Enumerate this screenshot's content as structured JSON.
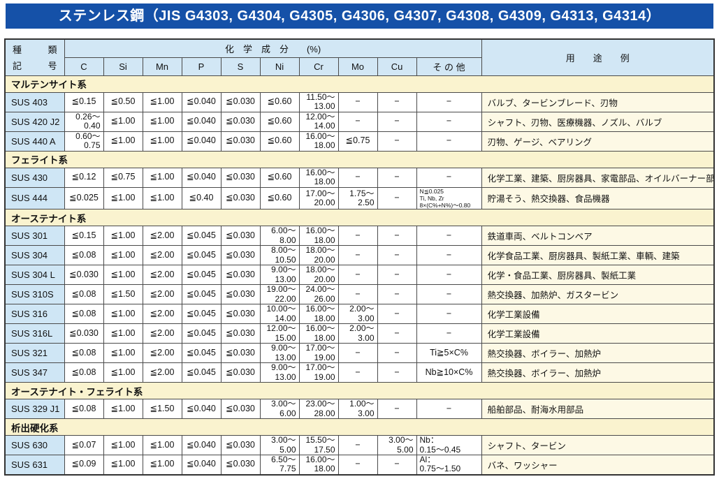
{
  "title": "ステンレス鋼（JIS G4303, G4304, G4305, G4306, G4307, G4308, G4309, G4313, G4314）",
  "colors": {
    "title_bar_bg": "#1551a8",
    "title_text": "#ffffff",
    "header_bg": "#d2e7f5",
    "grade_cell_bg": "#cfe6f5",
    "section_row_bg": "#faf3cf",
    "usage_cell_bg": "#fdf9e5",
    "data_cell_bg": "#ffffff",
    "border": "#4a4a4a"
  },
  "header": {
    "kind_char1": "種",
    "kind_char2": "類",
    "symbol_char1": "記",
    "symbol_char2": "号",
    "chem_label": "化　学　成　分　　(%)",
    "usage_label": "用　　途　　例",
    "columns": [
      "C",
      "Si",
      "Mn",
      "P",
      "S",
      "Ni",
      "Cr",
      "Mo",
      "Cu",
      "そ の 他"
    ]
  },
  "sections": [
    {
      "name": "マルテンサイト系",
      "rows": [
        {
          "grade": "SUS 403",
          "values": [
            "≦0.15",
            "≦0.50",
            "≦1.00",
            "≦0.040",
            "≦0.030",
            "≦0.60",
            {
              "lines": [
                "11.50～",
                "13.00"
              ],
              "align": "right"
            },
            "−",
            "−",
            "−"
          ],
          "usage": "バルブ、タービンブレード、刃物"
        },
        {
          "grade": "SUS 420 J2",
          "values": [
            {
              "lines": [
                "0.26～",
                "0.40"
              ],
              "align": "right"
            },
            "≦1.00",
            "≦1.00",
            "≦0.040",
            "≦0.030",
            "≦0.60",
            {
              "lines": [
                "12.00～",
                "14.00"
              ],
              "align": "right"
            },
            "−",
            "−",
            "−"
          ],
          "usage": "シャフト、刃物、医療機器、ノズル、バルブ"
        },
        {
          "grade": "SUS 440 A",
          "values": [
            {
              "lines": [
                "0.60～",
                "0.75"
              ],
              "align": "right"
            },
            "≦1.00",
            "≦1.00",
            "≦0.040",
            "≦0.030",
            "≦0.60",
            {
              "lines": [
                "16.00～",
                "18.00"
              ],
              "align": "right"
            },
            "≦0.75",
            "−",
            "−"
          ],
          "usage": "刃物、ゲージ、ベアリング"
        }
      ]
    },
    {
      "name": "フェライト系",
      "rows": [
        {
          "grade": "SUS 430",
          "values": [
            "≦0.12",
            "≦0.75",
            "≦1.00",
            "≦0.040",
            "≦0.030",
            "≦0.60",
            {
              "lines": [
                "16.00～",
                "18.00"
              ],
              "align": "right"
            },
            "−",
            "−",
            "−"
          ],
          "usage": "化学工業、建築、厨房器具、家電部品、オイルバーナー部品"
        },
        {
          "grade": "SUS 444",
          "values": [
            "≦0.025",
            "≦1.00",
            "≦1.00",
            "≦0.40",
            "≦0.030",
            "≦0.60",
            {
              "lines": [
                "17.00～",
                "20.00"
              ],
              "align": "right"
            },
            {
              "lines": [
                "1.75～",
                "2.50"
              ],
              "align": "right"
            },
            "−",
            {
              "lines": [
                "N≦0.025",
                "Ti, Nb, Zr",
                "8×(C%+N%)～0.80"
              ],
              "align": "left",
              "small": true
            }
          ],
          "usage": "貯湯そう、熱交換器、食品機器"
        }
      ]
    },
    {
      "name": "オーステナイト系",
      "rows": [
        {
          "grade": "SUS 301",
          "values": [
            "≦0.15",
            "≦1.00",
            "≦2.00",
            "≦0.045",
            "≦0.030",
            {
              "lines": [
                "6.00～",
                "8.00"
              ],
              "align": "right"
            },
            {
              "lines": [
                "16.00～",
                "18.00"
              ],
              "align": "right"
            },
            "−",
            "−",
            "−"
          ],
          "usage": "鉄道車両、ベルトコンベア"
        },
        {
          "grade": "SUS 304",
          "values": [
            "≦0.08",
            "≦1.00",
            "≦2.00",
            "≦0.045",
            "≦0.030",
            {
              "lines": [
                "8.00～",
                "10.50"
              ],
              "align": "right"
            },
            {
              "lines": [
                "18.00～",
                "20.00"
              ],
              "align": "right"
            },
            "−",
            "−",
            "−"
          ],
          "usage": "化学食品工業、厨房器具、製紙工業、車輌、建築"
        },
        {
          "grade": "SUS 304 L",
          "values": [
            "≦0.030",
            "≦1.00",
            "≦2.00",
            "≦0.045",
            "≦0.030",
            {
              "lines": [
                "9.00～",
                "13.00"
              ],
              "align": "right"
            },
            {
              "lines": [
                "18.00～",
                "20.00"
              ],
              "align": "right"
            },
            "−",
            "−",
            "−"
          ],
          "usage": "化学・食品工業、厨房器具、製紙工業"
        },
        {
          "grade": "SUS 310S",
          "values": [
            "≦0.08",
            "≦1.50",
            "≦2.00",
            "≦0.045",
            "≦0.030",
            {
              "lines": [
                "19.00～",
                "22.00"
              ],
              "align": "right"
            },
            {
              "lines": [
                "24.00～",
                "26.00"
              ],
              "align": "right"
            },
            "−",
            "−",
            "−"
          ],
          "usage": "熱交換器、加熱炉、ガスタービン"
        },
        {
          "grade": "SUS 316",
          "values": [
            "≦0.08",
            "≦1.00",
            "≦2.00",
            "≦0.045",
            "≦0.030",
            {
              "lines": [
                "10.00～",
                "14.00"
              ],
              "align": "right"
            },
            {
              "lines": [
                "16.00～",
                "18.00"
              ],
              "align": "right"
            },
            {
              "lines": [
                "2.00～",
                "3.00"
              ],
              "align": "right"
            },
            "−",
            "−"
          ],
          "usage": "化学工業設備"
        },
        {
          "grade": "SUS 316L",
          "values": [
            "≦0.030",
            "≦1.00",
            "≦2.00",
            "≦0.045",
            "≦0.030",
            {
              "lines": [
                "12.00～",
                "15.00"
              ],
              "align": "right"
            },
            {
              "lines": [
                "16.00～",
                "18.00"
              ],
              "align": "right"
            },
            {
              "lines": [
                "2.00～",
                "3.00"
              ],
              "align": "right"
            },
            "−",
            "−"
          ],
          "usage": "化学工業設備"
        },
        {
          "grade": "SUS 321",
          "values": [
            "≦0.08",
            "≦1.00",
            "≦2.00",
            "≦0.045",
            "≦0.030",
            {
              "lines": [
                "9.00～",
                "13.00"
              ],
              "align": "right"
            },
            {
              "lines": [
                "17.00～",
                "19.00"
              ],
              "align": "right"
            },
            "−",
            "−",
            "Ti≧5×C%"
          ],
          "usage": "熱交換器、ボイラー、加熱炉"
        },
        {
          "grade": "SUS 347",
          "values": [
            "≦0.08",
            "≦1.00",
            "≦2.00",
            "≦0.045",
            "≦0.030",
            {
              "lines": [
                "9.00～",
                "13.00"
              ],
              "align": "right"
            },
            {
              "lines": [
                "17.00～",
                "19.00"
              ],
              "align": "right"
            },
            "−",
            "−",
            "Nb≧10×C%"
          ],
          "usage": "熱交換器、ボイラー、加熱炉"
        }
      ]
    },
    {
      "name": "オーステナイト・フェライト系",
      "rows": [
        {
          "grade": "SUS 329 J1",
          "values": [
            "≦0.08",
            "≦1.00",
            "≦1.50",
            "≦0.040",
            "≦0.030",
            {
              "lines": [
                "3.00～",
                "6.00"
              ],
              "align": "right"
            },
            {
              "lines": [
                "23.00～",
                "28.00"
              ],
              "align": "right"
            },
            {
              "lines": [
                "1.00～",
                "3.00"
              ],
              "align": "right"
            },
            "−",
            "−"
          ],
          "usage": "船舶部品、耐海水用部品"
        }
      ]
    },
    {
      "name": "析出硬化系",
      "rows": [
        {
          "grade": "SUS 630",
          "values": [
            "≦0.07",
            "≦1.00",
            "≦1.00",
            "≦0.040",
            "≦0.030",
            {
              "lines": [
                "3.00～",
                "5.00"
              ],
              "align": "right"
            },
            {
              "lines": [
                "15.50～",
                "17.50"
              ],
              "align": "right"
            },
            "−",
            {
              "lines": [
                "3.00～",
                "5.00"
              ],
              "align": "right"
            },
            {
              "lines": [
                "Nb：",
                "0.15～0.45"
              ],
              "align": "left"
            }
          ],
          "usage": "シャフト、タービン"
        },
        {
          "grade": "SUS 631",
          "values": [
            "≦0.09",
            "≦1.00",
            "≦1.00",
            "≦0.040",
            "≦0.030",
            {
              "lines": [
                "6.50～",
                "7.75"
              ],
              "align": "right"
            },
            {
              "lines": [
                "16.00～",
                "18.00"
              ],
              "align": "right"
            },
            "−",
            "−",
            {
              "lines": [
                "Al：",
                "0.75～1.50"
              ],
              "align": "left"
            }
          ],
          "usage": "バネ、ワッシャー"
        }
      ]
    }
  ]
}
